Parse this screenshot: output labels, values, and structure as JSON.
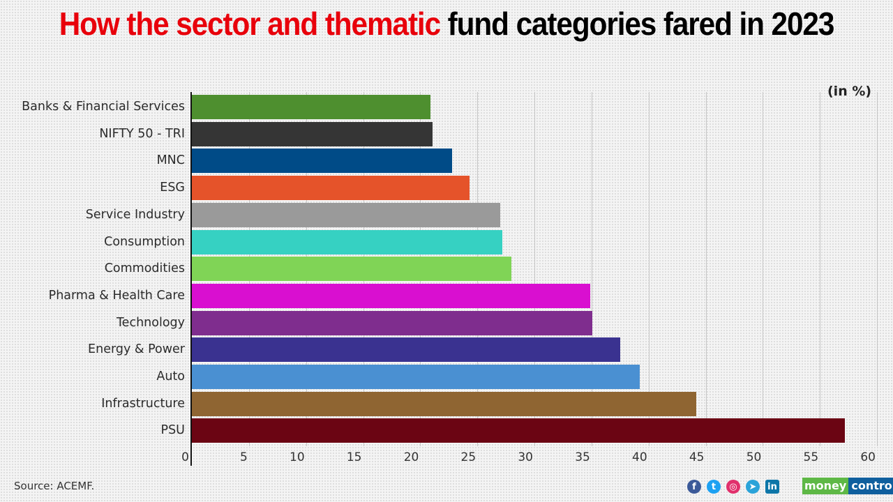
{
  "title": {
    "part_red": "How the sector and thematic",
    "part_black": " fund categories fared in 2023"
  },
  "unit_label": "(in %)",
  "source": "Source: ACEMF.",
  "brand": {
    "part1": "money",
    "part2": "control"
  },
  "social_icons": [
    {
      "name": "facebook-icon",
      "glyph": "f",
      "color": "#3b5998"
    },
    {
      "name": "twitter-icon",
      "glyph": "t",
      "color": "#1da1f2"
    },
    {
      "name": "instagram-icon",
      "glyph": "◎",
      "color": "#e1306c"
    },
    {
      "name": "telegram-icon",
      "glyph": "➤",
      "color": "#2aa3d9"
    },
    {
      "name": "linkedin-icon",
      "glyph": "in",
      "color": "#0e76a8"
    }
  ],
  "chart_data": {
    "type": "bar",
    "orientation": "horizontal",
    "title": "How the sector and thematic fund categories fared in 2023",
    "xlabel": "",
    "ylabel": "",
    "unit": "%",
    "xlim": [
      0,
      60
    ],
    "xticks": [
      "0",
      "5",
      "10",
      "15",
      "20",
      "25",
      "30",
      "35",
      "40",
      "45",
      "50",
      "55",
      "60"
    ],
    "grid": true,
    "categories": [
      "Banks & Financial Services",
      "NIFTY 50 - TRI",
      "MNC",
      "ESG",
      "Service Industry",
      "Consumption",
      "Commodities",
      "Pharma & Health Care",
      "Technology",
      "Energy & Power",
      "Auto",
      "Infrastructure",
      "PSU"
    ],
    "values": [
      20.9,
      21.1,
      22.8,
      24.3,
      27.0,
      27.2,
      28.0,
      34.9,
      35.1,
      37.5,
      39.2,
      44.2,
      57.2
    ],
    "colors": [
      "#4e8f2f",
      "#353535",
      "#004b87",
      "#e5532a",
      "#9a9a9a",
      "#36d1c2",
      "#80d456",
      "#d90fd0",
      "#7f2d8e",
      "#3a3290",
      "#4a90d2",
      "#8f6532",
      "#6b0513"
    ],
    "source": "ACEMF"
  }
}
